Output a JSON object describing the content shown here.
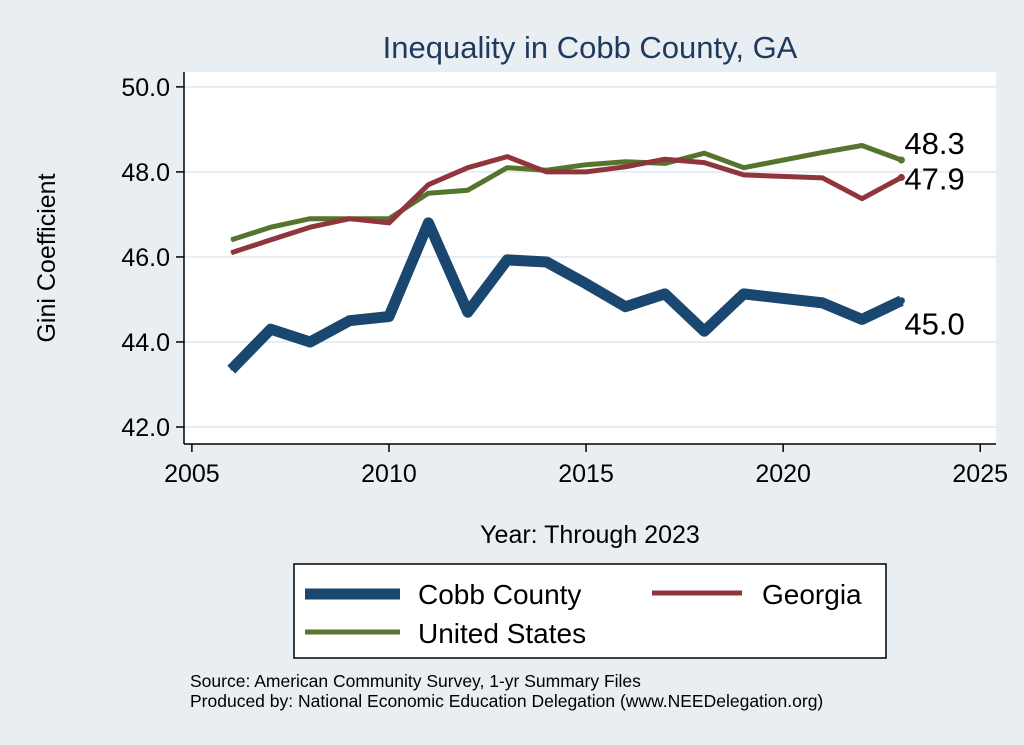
{
  "chart_data": {
    "type": "line",
    "title": "Inequality in Cobb County, GA",
    "xlabel": "Year: Through 2023",
    "ylabel": "Gini Coefficient",
    "xlim": [
      2004.8,
      2025.4
    ],
    "ylim": [
      41.6,
      50.35
    ],
    "x_ticks": [
      2005,
      2010,
      2015,
      2020,
      2025
    ],
    "x_tick_labels": [
      "2005",
      "2010",
      "2015",
      "2020",
      "2025"
    ],
    "y_ticks": [
      42,
      44,
      46,
      48,
      50
    ],
    "y_tick_labels": [
      "42.0",
      "44.0",
      "46.0",
      "48.0",
      "50.0"
    ],
    "grid": true,
    "series": [
      {
        "name": "Cobb County",
        "color": "#1a476f",
        "x": [
          2006,
          2007,
          2008,
          2009,
          2010,
          2011,
          2012,
          2013,
          2014,
          2015,
          2016,
          2017,
          2018,
          2019,
          2021,
          2022,
          2023
        ],
        "values": [
          43.35,
          44.3,
          44.0,
          44.5,
          44.6,
          46.8,
          44.7,
          45.93,
          45.88,
          45.37,
          44.83,
          45.13,
          44.25,
          45.13,
          44.92,
          44.53,
          44.97
        ],
        "end_label": "45.0"
      },
      {
        "name": "Georgia",
        "color": "#90353b",
        "x": [
          2006,
          2007,
          2008,
          2009,
          2010,
          2011,
          2012,
          2013,
          2014,
          2015,
          2016,
          2017,
          2018,
          2019,
          2021,
          2022,
          2023
        ],
        "values": [
          46.1,
          46.4,
          46.7,
          46.9,
          46.8,
          47.7,
          48.1,
          48.36,
          48.0,
          48.0,
          48.12,
          48.3,
          48.22,
          47.93,
          47.86,
          47.37,
          47.87
        ],
        "end_label": "47.9"
      },
      {
        "name": "United States",
        "color": "#55752f",
        "x": [
          2006,
          2007,
          2008,
          2009,
          2010,
          2011,
          2012,
          2013,
          2014,
          2015,
          2016,
          2017,
          2018,
          2019,
          2021,
          2022,
          2023
        ],
        "values": [
          46.4,
          46.7,
          46.9,
          46.9,
          46.9,
          47.5,
          47.57,
          48.1,
          48.04,
          48.17,
          48.24,
          48.2,
          48.44,
          48.1,
          48.46,
          48.62,
          48.28
        ],
        "end_label": "48.3"
      }
    ],
    "legend": {
      "position": "bottom",
      "entries": [
        "Cobb County",
        "Georgia",
        "United States"
      ]
    }
  },
  "source": {
    "line1": "Source: American Community Survey, 1-yr Summary Files",
    "line2": "Produced by: National Economic Education Delegation (www.NEEDelegation.org)"
  },
  "colors": {
    "background": "#e9eef2",
    "plot_background": "#ffffff",
    "title": "#1f3a5f"
  }
}
